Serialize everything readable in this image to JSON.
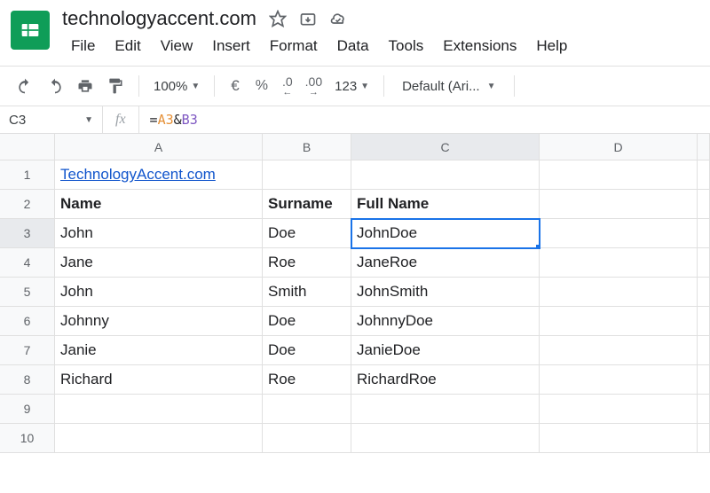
{
  "doc": {
    "title": "technologyaccent.com"
  },
  "menubar": {
    "items": [
      "File",
      "Edit",
      "View",
      "Insert",
      "Format",
      "Data",
      "Tools",
      "Extensions",
      "Help"
    ]
  },
  "toolbar": {
    "zoom": "100%",
    "currency": "€",
    "percent": "%",
    "dec_dec": ".0",
    "inc_dec": ".00",
    "num_format": "123",
    "font": "Default (Ari..."
  },
  "namebox": {
    "cell_ref": "C3",
    "fx_label": "fx"
  },
  "formula": {
    "eq": "=",
    "ref1": "A3",
    "amp": "&",
    "ref2": "B3"
  },
  "grid": {
    "columns": [
      "A",
      "B",
      "C",
      "D",
      ""
    ],
    "col_widths": {
      "A": 234,
      "B": 100,
      "C": 212,
      "D": 178,
      "E": 14
    },
    "row_heads": [
      "1",
      "2",
      "3",
      "4",
      "5",
      "6",
      "7",
      "8",
      "9",
      "10"
    ],
    "selected": {
      "row": 3,
      "col": "C"
    },
    "rows": [
      {
        "A": "TechnologyAccent.com",
        "A_link": true
      },
      {
        "A": "Name",
        "B": "Surname",
        "C": "Full Name",
        "bold": true
      },
      {
        "A": "John",
        "B": "Doe",
        "C": "JohnDoe"
      },
      {
        "A": "Jane",
        "B": "Roe",
        "C": "JaneRoe"
      },
      {
        "A": "John",
        "B": "Smith",
        "C": "JohnSmith"
      },
      {
        "A": "Johnny",
        "B": "Doe",
        "C": "JohnnyDoe"
      },
      {
        "A": "Janie",
        "B": "Doe",
        "C": "JanieDoe"
      },
      {
        "A": "Richard",
        "B": "Roe",
        "C": "RichardRoe"
      },
      {},
      {}
    ]
  },
  "colors": {
    "accent": "#1a73e8",
    "logo": "#0f9d58",
    "formula_ref1": "#e69138",
    "formula_ref2": "#7e57c2",
    "link": "#1155cc"
  }
}
